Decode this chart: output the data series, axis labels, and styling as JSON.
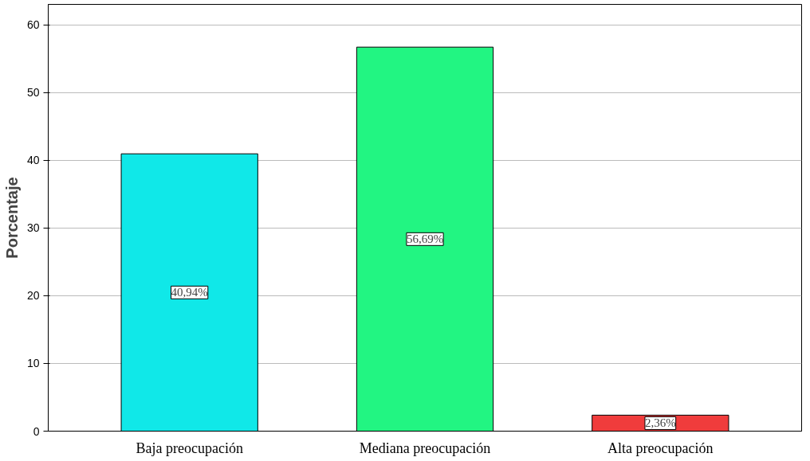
{
  "chart_data": {
    "type": "bar",
    "ylabel": "Porcentaje",
    "categories": [
      "Baja preocupación",
      "Mediana preocupación",
      "Alta preocupación"
    ],
    "values": [
      40.94,
      56.69,
      2.36
    ],
    "colors": [
      "#10e8e8",
      "#22f582",
      "#f03c3c"
    ],
    "value_labels": [
      "40,94%",
      "56,69%",
      "2,36%"
    ],
    "ylim": [
      0,
      63
    ],
    "yticks": [
      0,
      10,
      20,
      30,
      40,
      50,
      60
    ],
    "grid": "y"
  }
}
